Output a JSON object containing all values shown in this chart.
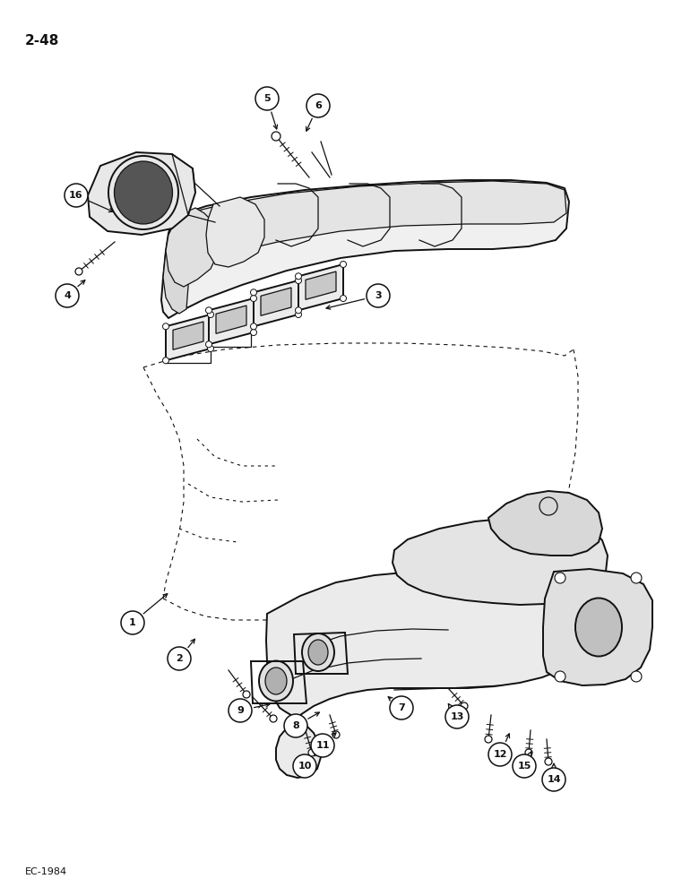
{
  "page_label": "2-48",
  "footer_label": "EC-1984",
  "background_color": "#ffffff",
  "line_color": "#111111",
  "figsize": [
    7.8,
    10.0
  ],
  "dpi": 100,
  "callouts": [
    [
      1,
      148,
      695,
      190,
      660
    ],
    [
      2,
      200,
      735,
      220,
      710
    ],
    [
      3,
      422,
      330,
      360,
      345
    ],
    [
      4,
      75,
      330,
      98,
      310
    ],
    [
      5,
      298,
      110,
      310,
      148
    ],
    [
      6,
      355,
      118,
      340,
      150
    ],
    [
      7,
      448,
      790,
      430,
      775
    ],
    [
      8,
      330,
      810,
      360,
      793
    ],
    [
      9,
      268,
      793,
      305,
      785
    ],
    [
      10,
      340,
      855,
      360,
      835
    ],
    [
      11,
      360,
      832,
      378,
      815
    ],
    [
      12,
      558,
      842,
      570,
      815
    ],
    [
      13,
      510,
      800,
      498,
      782
    ],
    [
      14,
      618,
      870,
      618,
      848
    ],
    [
      15,
      585,
      855,
      595,
      835
    ],
    [
      16,
      85,
      218,
      130,
      238
    ]
  ]
}
